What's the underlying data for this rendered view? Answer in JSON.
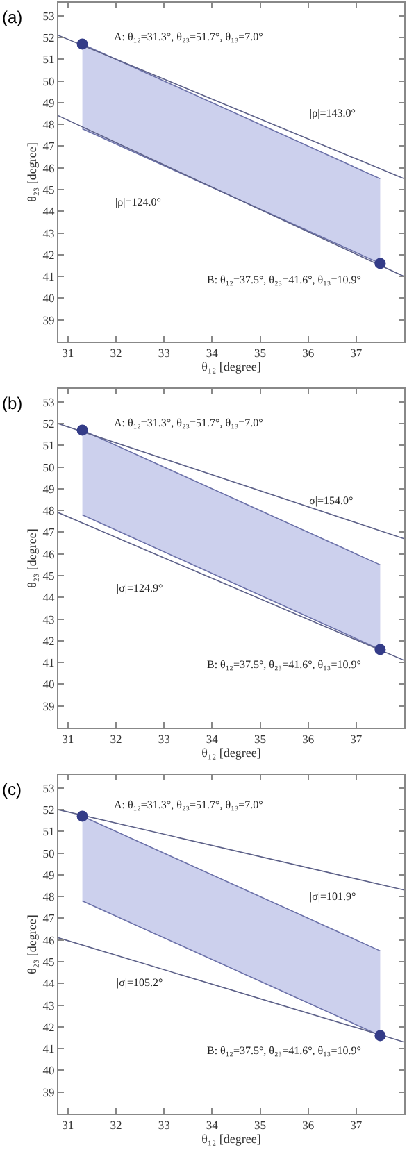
{
  "chart_data": [
    {
      "type": "line",
      "title": "(a)",
      "xlabel": "θ₁₂ [degree]",
      "ylabel": "θ₂₃ [degree]",
      "xlim": [
        30.8,
        38.0
      ],
      "ylim": [
        38.0,
        53.6
      ],
      "xticks": [
        31,
        32,
        33,
        34,
        35,
        36,
        37
      ],
      "yticks": [
        39,
        40,
        41,
        42,
        43,
        44,
        45,
        46,
        47,
        48,
        49,
        50,
        51,
        52,
        53
      ],
      "grid": false,
      "series": [
        {
          "type": "line",
          "color": "#6a70a8",
          "x": [
            31.3,
            37.5
          ],
          "values": [
            47.8,
            41.6
          ]
        },
        {
          "type": "area",
          "color": "#c3c8ea",
          "x": [
            31.3,
            37.5
          ],
          "values": [
            51.7,
            45.5
          ]
        },
        {
          "type": "line",
          "color": "#5c6088",
          "x": [
            30.8,
            38.0
          ],
          "values": [
            52.1,
            45.5
          ]
        },
        {
          "type": "line",
          "color": "#5c6088",
          "x": [
            30.8,
            38.0
          ],
          "values": [
            48.4,
            41.0
          ]
        },
        {
          "type": "scatter",
          "marker": "circle",
          "color": "#343c88",
          "x": [
            31.3,
            37.5
          ],
          "values": [
            51.7,
            41.6
          ]
        }
      ],
      "annotations": [
        {
          "text": "A: θ₁₂=31.3°, θ₂₃=51.7°, θ₁₃=7.0°",
          "x": 31.3,
          "y": 51.7
        },
        {
          "text": "B: θ₁₂=37.5°, θ₂₃=41.6°, θ₁₃=10.9°",
          "x": 37.5,
          "y": 41.6
        },
        {
          "text": "|ρ|=143.0°",
          "x": 36.5,
          "y": 46.9
        },
        "|ρ|=124.0°"
      ]
    },
    {
      "type": "line",
      "title": "(b)",
      "xlabel": "θ₁₂ [degree]",
      "ylabel": "θ₂₃ [degree]",
      "xlim": [
        30.8,
        38.0
      ],
      "ylim": [
        38.0,
        53.6
      ],
      "xticks": [
        31,
        32,
        33,
        34,
        35,
        36,
        37
      ],
      "yticks": [
        39,
        40,
        41,
        42,
        43,
        44,
        45,
        46,
        47,
        48,
        49,
        50,
        51,
        52,
        53
      ],
      "grid": false,
      "series": [
        {
          "type": "line",
          "color": "#6a70a8",
          "x": [
            31.3,
            37.5
          ],
          "values": [
            47.8,
            41.6
          ]
        },
        {
          "type": "area",
          "color": "#c3c8ea",
          "x": [
            31.3,
            37.5
          ],
          "values": [
            51.7,
            45.5
          ]
        },
        {
          "type": "line",
          "color": "#5c6088",
          "x": [
            30.8,
            38.0
          ],
          "values": [
            52.0,
            46.7
          ]
        },
        {
          "type": "line",
          "color": "#5c6088",
          "x": [
            30.8,
            38.0
          ],
          "values": [
            47.9,
            41.1
          ]
        },
        {
          "type": "scatter",
          "marker": "circle",
          "color": "#343c88",
          "x": [
            31.3,
            37.5
          ],
          "values": [
            51.7,
            41.6
          ]
        }
      ],
      "annotations": [
        {
          "text": "A: θ₁₂=31.3°, θ₂₃=51.7°, θ₁₃=7.0°",
          "x": 31.3,
          "y": 51.7
        },
        {
          "text": "B: θ₁₂=37.5°, θ₂₃=41.6°, θ₁₃=10.9°",
          "x": 37.5,
          "y": 41.6
        },
        {
          "text": "|σ|=154.0°",
          "x": 36.45,
          "y": 47.8
        },
        "|σ|=124.9°"
      ]
    },
    {
      "type": "line",
      "title": "(c)",
      "xlabel": "θ₁₂ [degree]",
      "ylabel": "θ₂₃ [degree]",
      "xlim": [
        30.8,
        38.0
      ],
      "ylim": [
        38.0,
        53.6
      ],
      "xticks": [
        31,
        32,
        33,
        34,
        35,
        36,
        37
      ],
      "yticks": [
        39,
        40,
        41,
        42,
        43,
        44,
        45,
        46,
        47,
        48,
        49,
        50,
        51,
        52,
        53
      ],
      "grid": false,
      "series": [
        {
          "type": "line",
          "color": "#6a70a8",
          "x": [
            31.3,
            37.5
          ],
          "values": [
            47.8,
            41.6
          ]
        },
        {
          "type": "area",
          "color": "#c3c8ea",
          "x": [
            31.3,
            37.5
          ],
          "values": [
            51.7,
            45.5
          ]
        },
        {
          "type": "line",
          "color": "#5c6088",
          "x": [
            30.8,
            38.0
          ],
          "values": [
            52.0,
            48.3
          ]
        },
        {
          "type": "line",
          "color": "#5c6088",
          "x": [
            30.8,
            38.0
          ],
          "values": [
            46.1,
            41.3
          ]
        },
        {
          "type": "scatter",
          "marker": "circle",
          "color": "#343c88",
          "x": [
            31.3,
            37.5
          ],
          "values": [
            51.7,
            41.6
          ]
        }
      ],
      "annotations": [
        {
          "text": "A: θ₁₂=31.3°, θ₂₃=51.7°, θ₁₃=7.0°",
          "x": 31.3,
          "y": 51.7
        },
        {
          "text": "B: θ₁₂=37.5°, θ₂₃=41.6°, θ₁₃=10.9°",
          "x": 37.5,
          "y": 41.6
        },
        {
          "text": "|σ|=101.9°",
          "x": 36.5,
          "y": 49.1
        },
        {
          "text": "|σ|=105.2°",
          "x": 32.5,
          "y": 45.0
        }
      ]
    }
  ]
}
